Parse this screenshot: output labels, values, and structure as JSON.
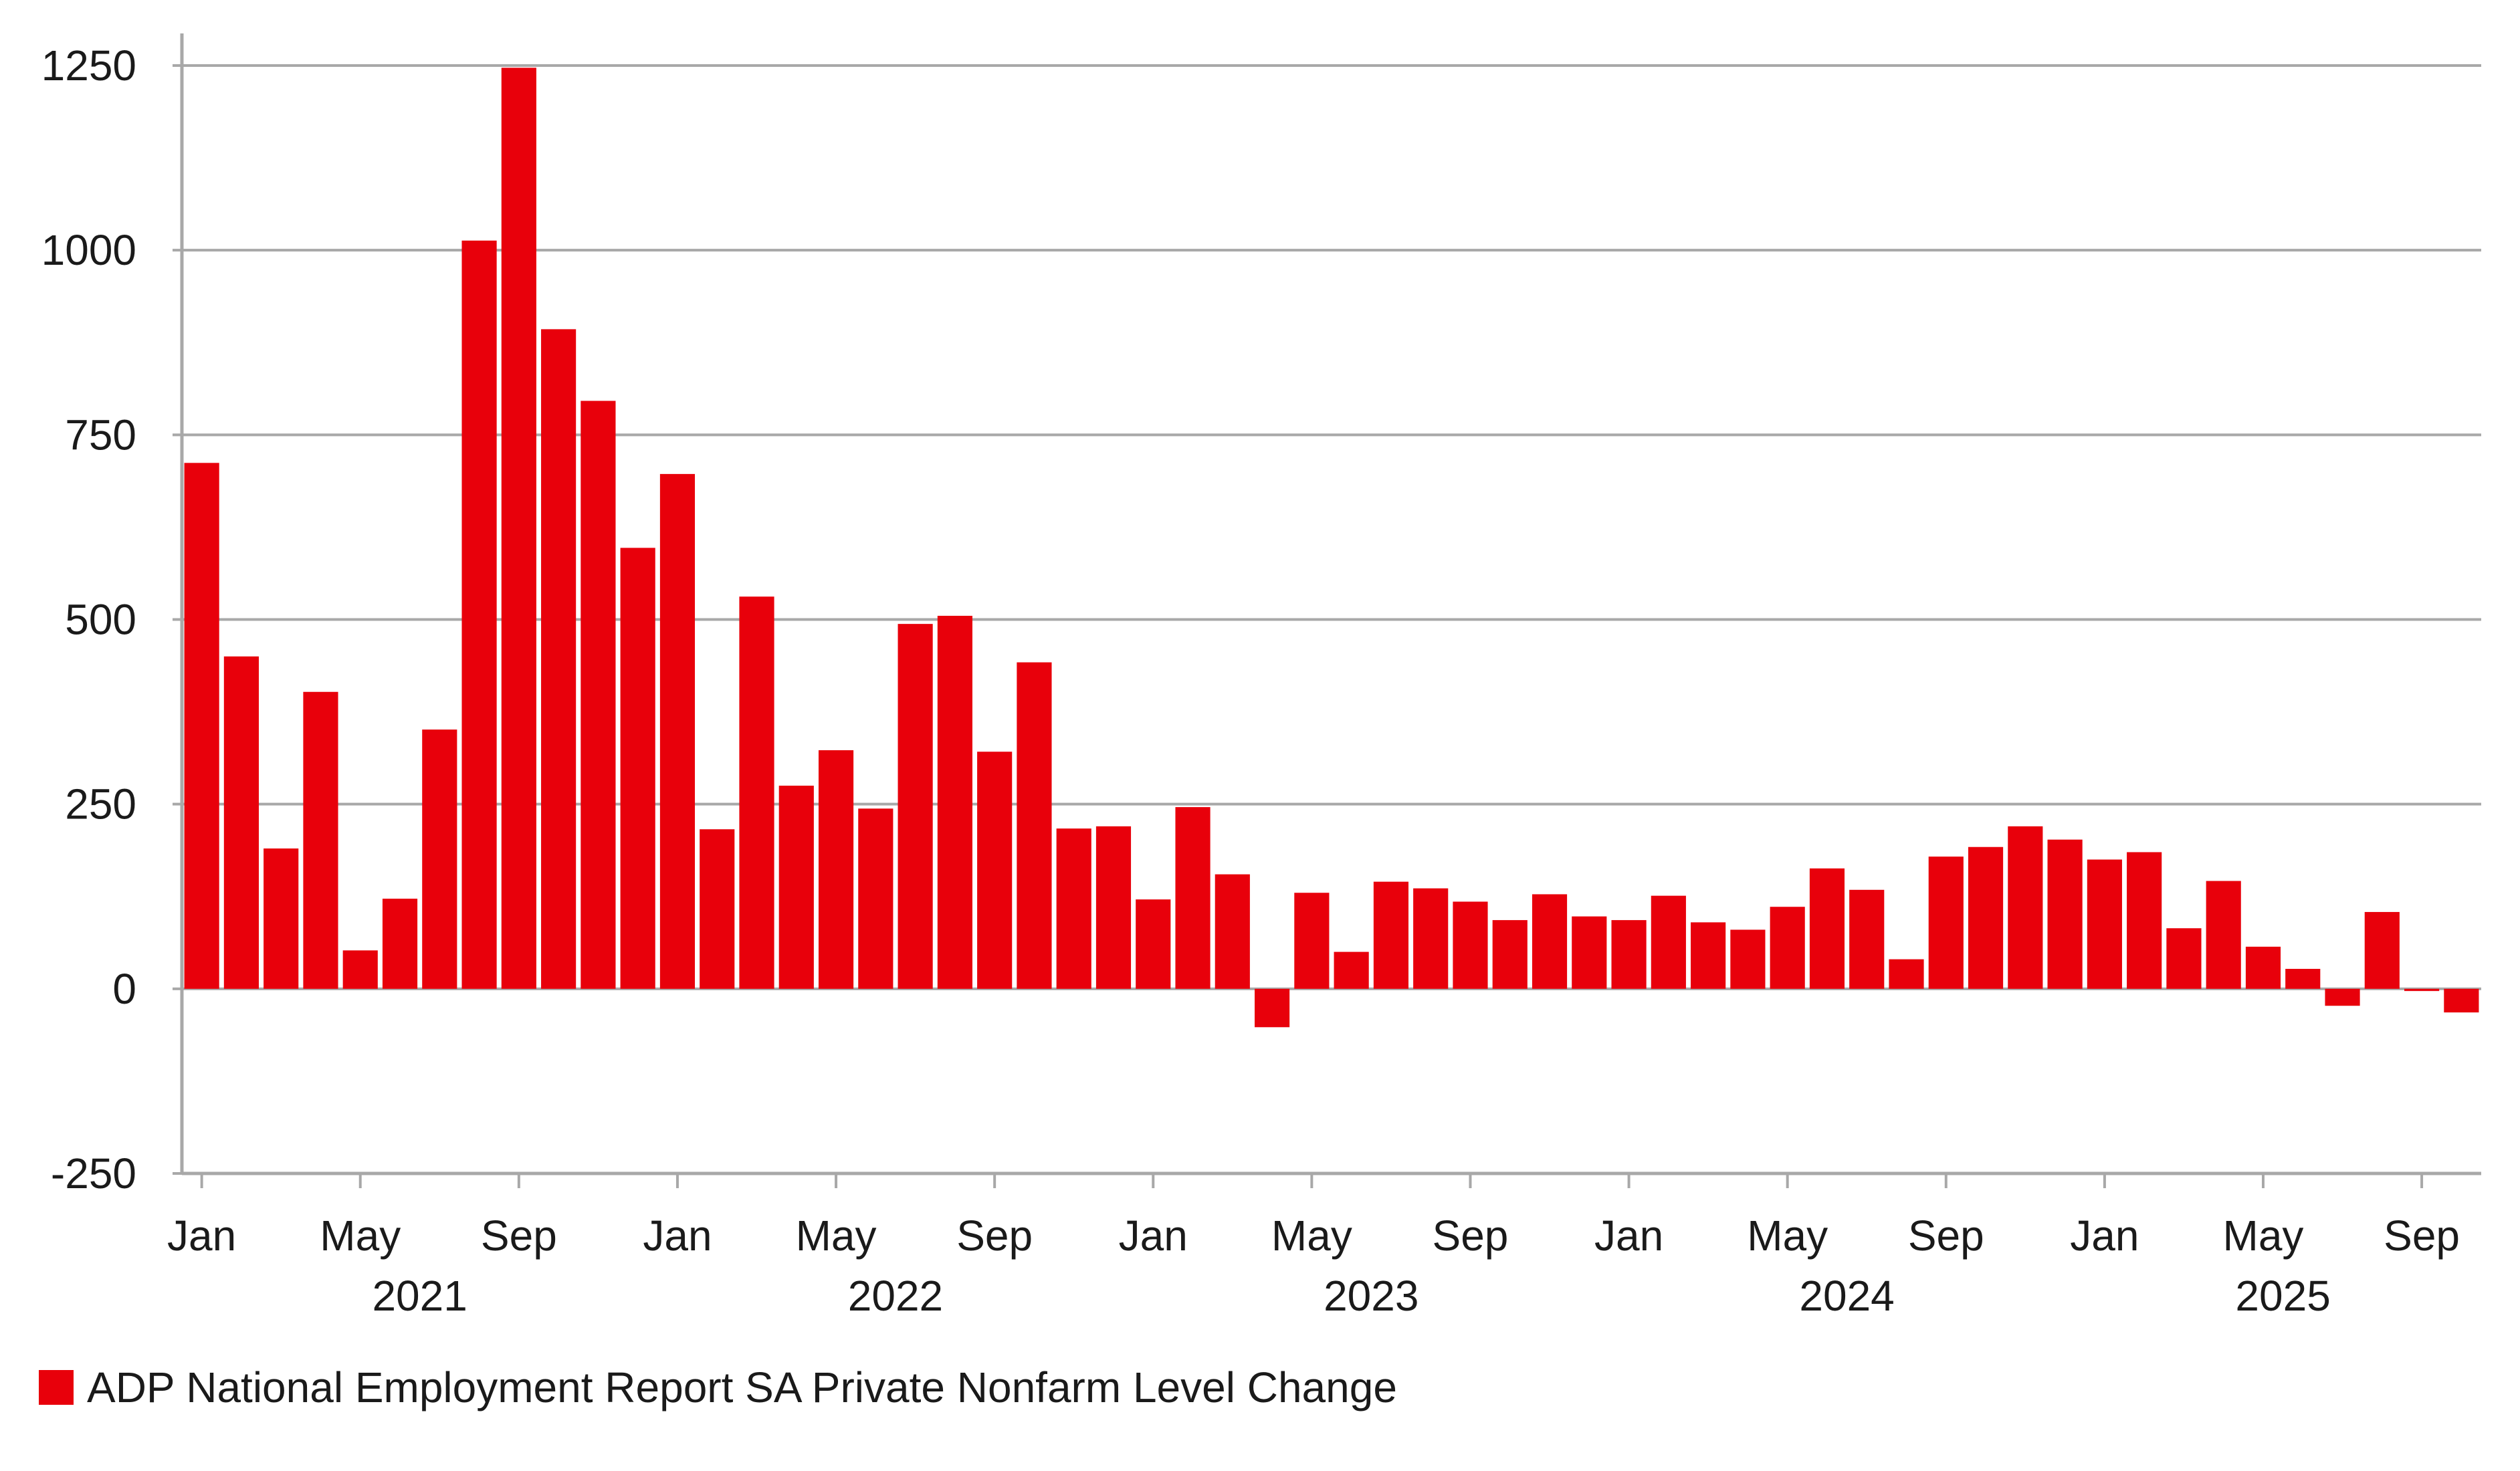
{
  "chart_data": {
    "type": "bar",
    "title": "",
    "xlabel": "",
    "ylabel": "",
    "ylim": [
      -250,
      1250
    ],
    "yticks": [
      -250,
      0,
      250,
      500,
      750,
      1000,
      1250
    ],
    "grid": true,
    "color": "#e8000b",
    "categories": [
      "Jan 2021",
      "Feb 2021",
      "Mar 2021",
      "Apr 2021",
      "May 2021",
      "Jun 2021",
      "Jul 2021",
      "Aug 2021",
      "Sep 2021",
      "Oct 2021",
      "Nov 2021",
      "Dec 2021",
      "Jan 2022",
      "Feb 2022",
      "Mar 2022",
      "Apr 2022",
      "May 2022",
      "Jun 2022",
      "Jul 2022",
      "Aug 2022",
      "Sep 2022",
      "Oct 2022",
      "Nov 2022",
      "Dec 2022",
      "Jan 2023",
      "Feb 2023",
      "Mar 2023",
      "Apr 2023",
      "May 2023",
      "Jun 2023",
      "Jul 2023",
      "Aug 2023",
      "Sep 2023",
      "Oct 2023",
      "Nov 2023",
      "Dec 2023",
      "Jan 2024",
      "Feb 2024",
      "Mar 2024",
      "Apr 2024",
      "May 2024",
      "Jun 2024",
      "Jul 2024",
      "Aug 2024",
      "Sep 2024",
      "Oct 2024",
      "Nov 2024",
      "Dec 2024",
      "Jan 2025",
      "Feb 2025",
      "Mar 2025",
      "Apr 2025",
      "May 2025",
      "Jun 2025",
      "Jul 2025",
      "Aug 2025",
      "Sep 2025",
      "Oct 2025"
    ],
    "series": [
      {
        "name": "ADP National Employment Report SA Private Nonfarm Level Change",
        "values": [
          712,
          450,
          190,
          402,
          52,
          122,
          351,
          1013,
          1247,
          893,
          796,
          597,
          697,
          216,
          531,
          275,
          323,
          244,
          494,
          505,
          321,
          442,
          217,
          220,
          121,
          246,
          155,
          -52,
          130,
          50,
          145,
          136,
          118,
          93,
          128,
          98,
          93,
          126,
          90,
          80,
          111,
          163,
          134,
          40,
          179,
          192,
          220,
          202,
          175,
          185,
          82,
          146,
          57,
          27,
          -23,
          104,
          -3,
          -32
        ]
      }
    ],
    "x_tick_labels": [
      {
        "index": 0,
        "label": "Jan"
      },
      {
        "index": 4,
        "label": "May"
      },
      {
        "index": 8,
        "label": "Sep"
      },
      {
        "index": 12,
        "label": "Jan"
      },
      {
        "index": 16,
        "label": "May"
      },
      {
        "index": 20,
        "label": "Sep"
      },
      {
        "index": 24,
        "label": "Jan"
      },
      {
        "index": 28,
        "label": "May"
      },
      {
        "index": 32,
        "label": "Sep"
      },
      {
        "index": 36,
        "label": "Jan"
      },
      {
        "index": 40,
        "label": "May"
      },
      {
        "index": 44,
        "label": "Sep"
      },
      {
        "index": 48,
        "label": "Jan"
      },
      {
        "index": 52,
        "label": "May"
      },
      {
        "index": 56,
        "label": "Sep"
      }
    ],
    "year_labels": [
      {
        "label": "2021",
        "start": 0,
        "end": 11
      },
      {
        "label": "2022",
        "start": 12,
        "end": 23
      },
      {
        "label": "2023",
        "start": 24,
        "end": 35
      },
      {
        "label": "2024",
        "start": 36,
        "end": 47
      },
      {
        "label": "2025",
        "start": 48,
        "end": 57
      }
    ],
    "legend": {
      "position": "bottom-left"
    }
  }
}
